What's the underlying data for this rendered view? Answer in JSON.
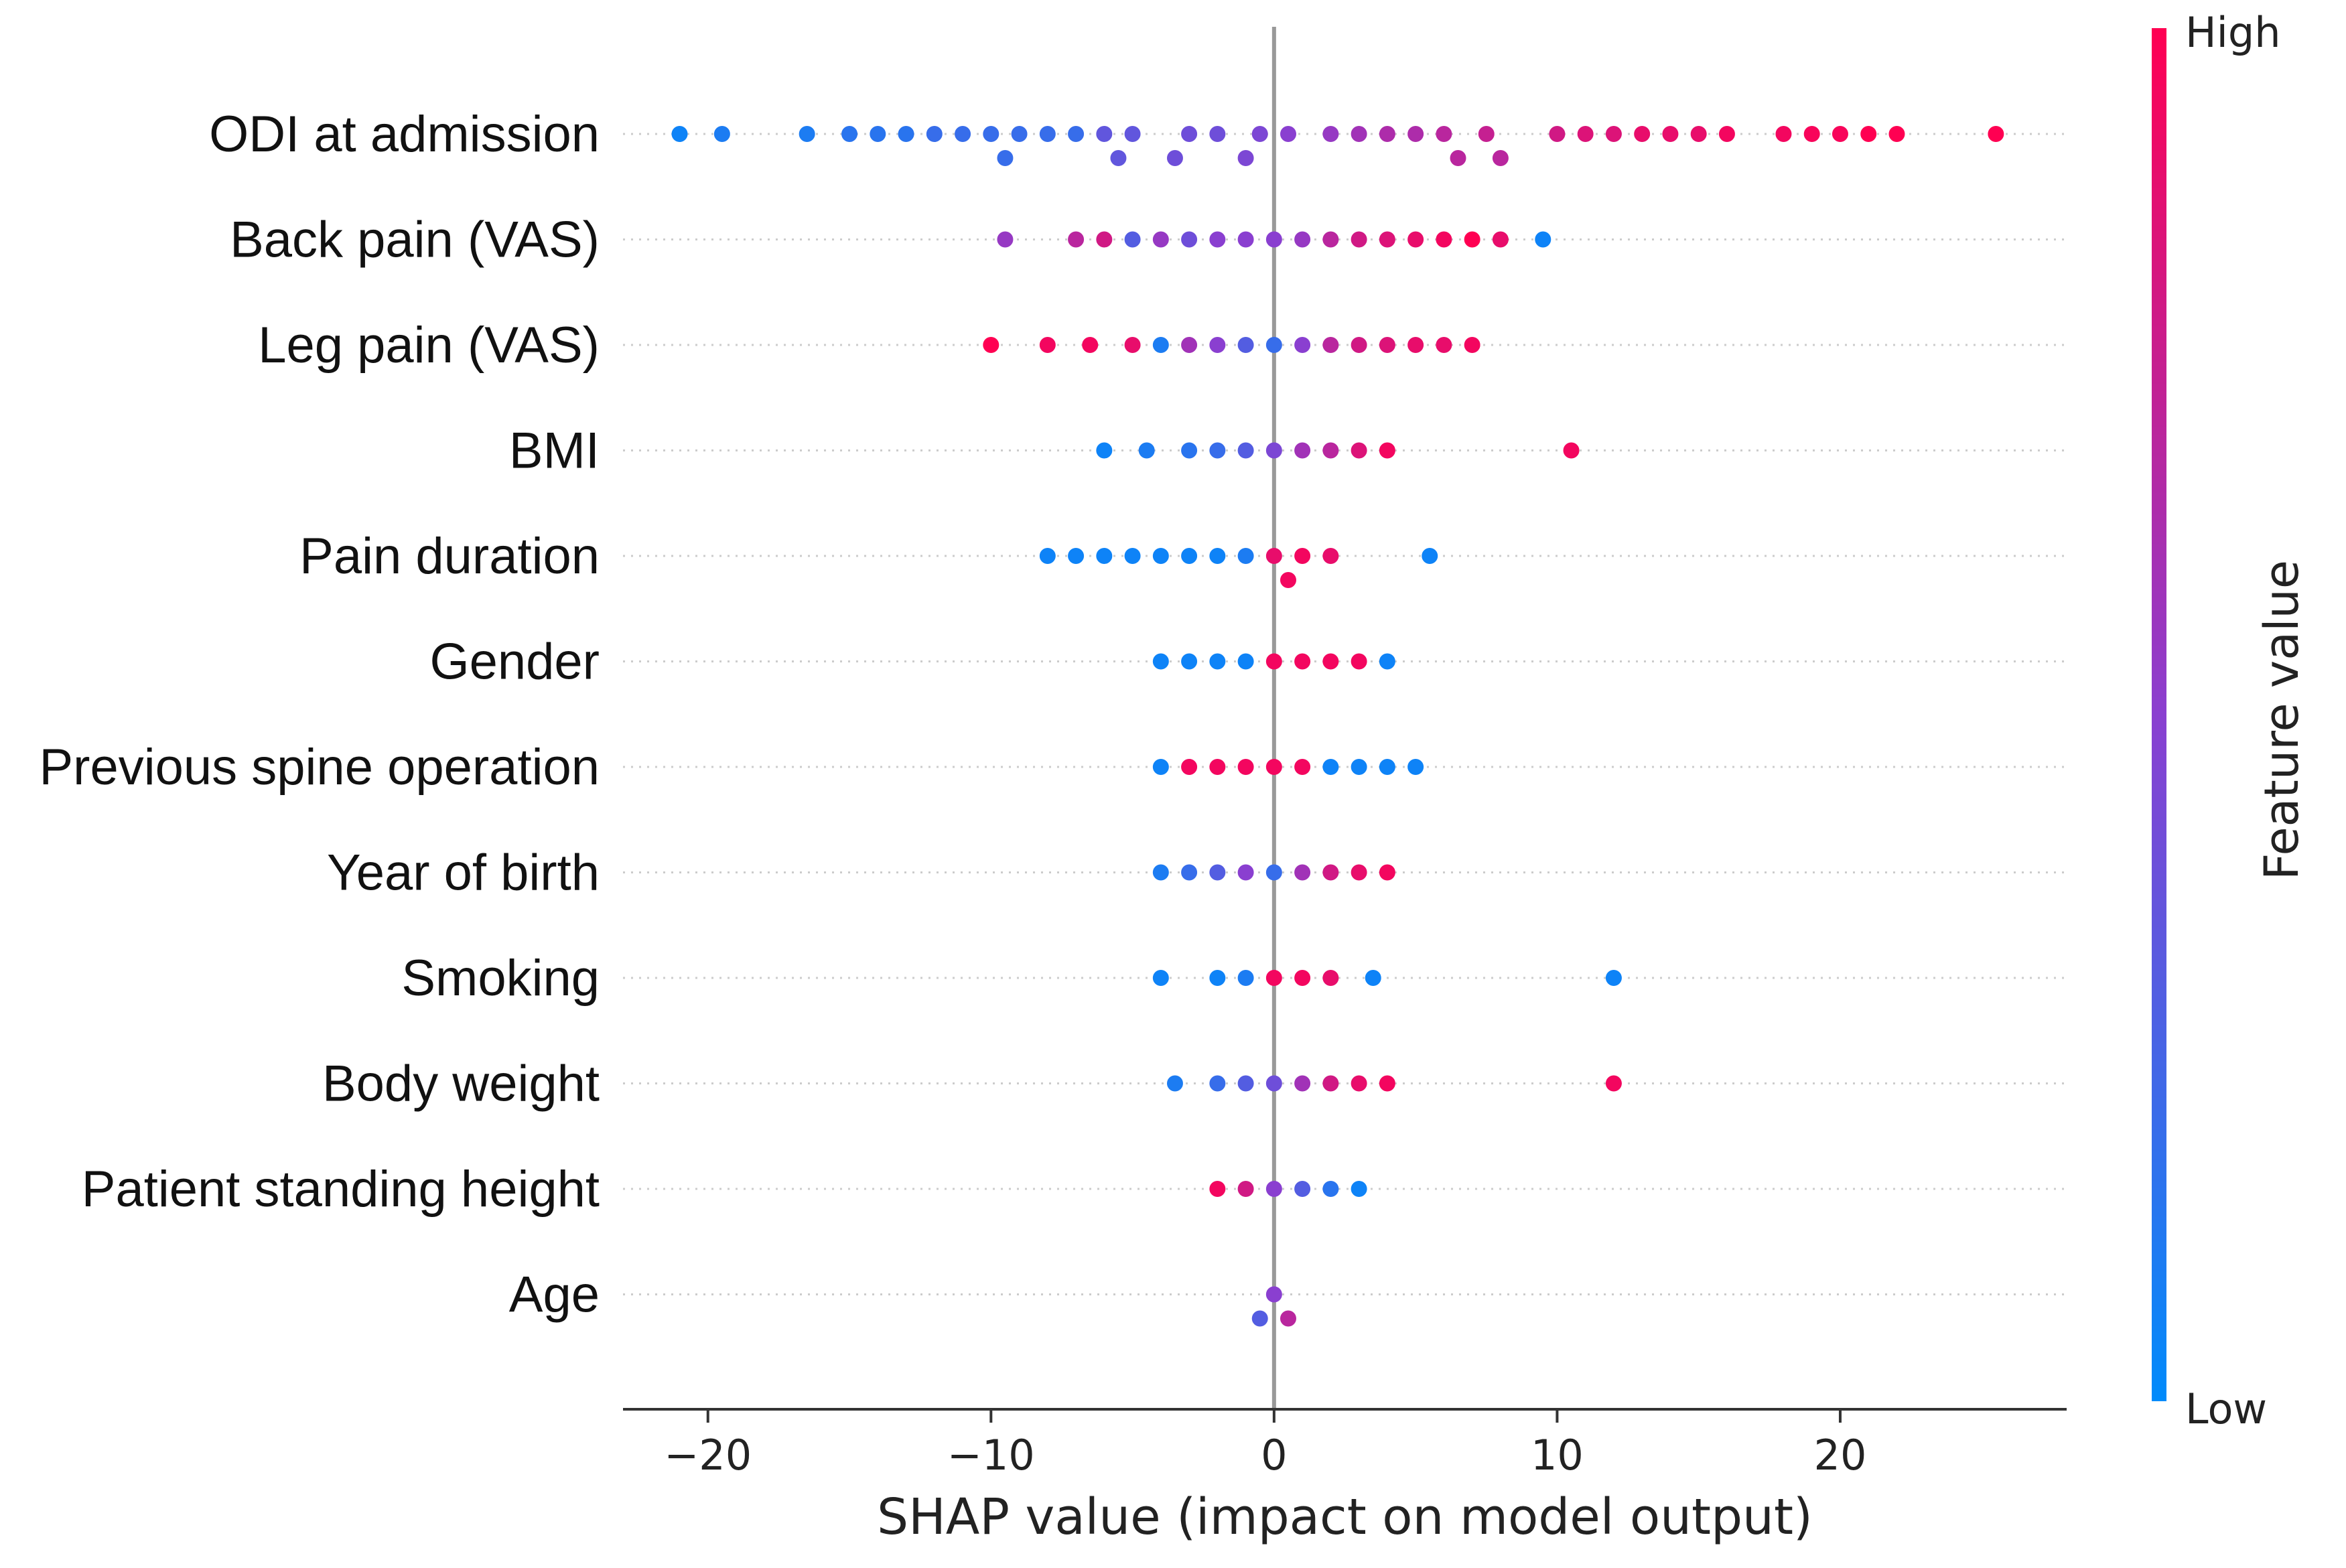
{
  "chart_data": {
    "type": "scatter",
    "subtype": "shap-beeswarm",
    "title": "",
    "xlabel": "SHAP value (impact on model output)",
    "ylabel": "",
    "xlim": [
      -23,
      28
    ],
    "xticks": [
      -20,
      -10,
      0,
      10,
      20
    ],
    "xtick_labels": [
      "−20",
      "−10",
      "0",
      "10",
      "20"
    ],
    "colorbar": {
      "title": "Feature value",
      "high_label": "High",
      "low_label": "Low",
      "low_color": "#008bfb",
      "high_color": "#ff0052"
    },
    "features": [
      {
        "name": "ODI at admission",
        "points": [
          [
            -21,
            0.05
          ],
          [
            -19.5,
            0.1
          ],
          [
            -16.5,
            0.1
          ],
          [
            -15,
            0.15
          ],
          [
            -14,
            0.15
          ],
          [
            -13,
            0.15
          ],
          [
            -12,
            0.2
          ],
          [
            -11,
            0.2
          ],
          [
            -10,
            0.2
          ],
          [
            -9.5,
            0.2
          ],
          [
            -9,
            0.2
          ],
          [
            -8,
            0.2
          ],
          [
            -7,
            0.2
          ],
          [
            -6,
            0.35
          ],
          [
            -5.5,
            0.35
          ],
          [
            -5,
            0.35
          ],
          [
            -3.5,
            0.4
          ],
          [
            -3,
            0.4
          ],
          [
            -2,
            0.4
          ],
          [
            -1,
            0.45
          ],
          [
            -0.5,
            0.45
          ],
          [
            0.5,
            0.5
          ],
          [
            2,
            0.55
          ],
          [
            3,
            0.6
          ],
          [
            4,
            0.65
          ],
          [
            5,
            0.65
          ],
          [
            6,
            0.7
          ],
          [
            6.5,
            0.7
          ],
          [
            7.5,
            0.75
          ],
          [
            8,
            0.7
          ],
          [
            10,
            0.8
          ],
          [
            11,
            0.85
          ],
          [
            12,
            0.85
          ],
          [
            13,
            0.9
          ],
          [
            14,
            0.9
          ],
          [
            15,
            0.9
          ],
          [
            16,
            0.95
          ],
          [
            18,
            0.95
          ],
          [
            19,
            0.97
          ],
          [
            20,
            0.97
          ],
          [
            21,
            1.0
          ],
          [
            22,
            1.0
          ],
          [
            25.5,
            1.0
          ]
        ]
      },
      {
        "name": "Back pain (VAS)",
        "points": [
          [
            -9.5,
            0.55
          ],
          [
            -7,
            0.7
          ],
          [
            -6,
            0.8
          ],
          [
            -5,
            0.3
          ],
          [
            -4,
            0.55
          ],
          [
            -3,
            0.4
          ],
          [
            -2,
            0.5
          ],
          [
            -1,
            0.5
          ],
          [
            0,
            0.5
          ],
          [
            1,
            0.55
          ],
          [
            2,
            0.7
          ],
          [
            3,
            0.8
          ],
          [
            4,
            0.85
          ],
          [
            5,
            0.9
          ],
          [
            6,
            0.95
          ],
          [
            7,
            1.0
          ],
          [
            8,
            0.9
          ],
          [
            9.5,
            0.05
          ]
        ]
      },
      {
        "name": "Leg pain (VAS)",
        "points": [
          [
            -10,
            1.0
          ],
          [
            -8,
            0.95
          ],
          [
            -6.5,
            0.95
          ],
          [
            -5,
            0.9
          ],
          [
            -4,
            0.1
          ],
          [
            -3,
            0.6
          ],
          [
            -2,
            0.5
          ],
          [
            -1,
            0.3
          ],
          [
            0,
            0.2
          ],
          [
            1,
            0.5
          ],
          [
            2,
            0.7
          ],
          [
            3,
            0.8
          ],
          [
            4,
            0.85
          ],
          [
            5,
            0.9
          ],
          [
            6,
            0.9
          ],
          [
            7,
            0.95
          ]
        ]
      },
      {
        "name": "BMI",
        "points": [
          [
            -6,
            0.05
          ],
          [
            -4.5,
            0.1
          ],
          [
            -3,
            0.15
          ],
          [
            -2,
            0.2
          ],
          [
            -1,
            0.3
          ],
          [
            0,
            0.45
          ],
          [
            1,
            0.6
          ],
          [
            2,
            0.7
          ],
          [
            3,
            0.85
          ],
          [
            4,
            0.95
          ],
          [
            10.5,
            0.95
          ]
        ]
      },
      {
        "name": "Pain duration",
        "points": [
          [
            -8,
            0.05
          ],
          [
            -7,
            0.05
          ],
          [
            -6,
            0.05
          ],
          [
            -5,
            0.05
          ],
          [
            -4,
            0.05
          ],
          [
            -3,
            0.05
          ],
          [
            -2,
            0.05
          ],
          [
            -1,
            0.1
          ],
          [
            0,
            0.9
          ],
          [
            0.5,
            0.95
          ],
          [
            1,
            0.95
          ],
          [
            2,
            0.9
          ],
          [
            5.5,
            0.05
          ]
        ]
      },
      {
        "name": "Gender",
        "points": [
          [
            -4,
            0.05
          ],
          [
            -3,
            0.05
          ],
          [
            -2,
            0.05
          ],
          [
            -1,
            0.05
          ],
          [
            0,
            0.95
          ],
          [
            1,
            0.95
          ],
          [
            2,
            0.95
          ],
          [
            3,
            0.95
          ],
          [
            4,
            0.05
          ]
        ]
      },
      {
        "name": "Previous spine operation",
        "points": [
          [
            -4,
            0.05
          ],
          [
            -3,
            0.95
          ],
          [
            -2,
            0.95
          ],
          [
            -1,
            0.95
          ],
          [
            0,
            0.95
          ],
          [
            1,
            0.95
          ],
          [
            2,
            0.05
          ],
          [
            3,
            0.05
          ],
          [
            4,
            0.05
          ],
          [
            5,
            0.05
          ]
        ]
      },
      {
        "name": "Year of birth",
        "points": [
          [
            -4,
            0.1
          ],
          [
            -3,
            0.2
          ],
          [
            -2,
            0.3
          ],
          [
            -1,
            0.5
          ],
          [
            0,
            0.2
          ],
          [
            1,
            0.6
          ],
          [
            2,
            0.8
          ],
          [
            3,
            0.9
          ],
          [
            4,
            0.95
          ]
        ]
      },
      {
        "name": "Smoking",
        "points": [
          [
            -4,
            0.05
          ],
          [
            -2,
            0.05
          ],
          [
            -1,
            0.1
          ],
          [
            0,
            0.95
          ],
          [
            1,
            0.95
          ],
          [
            2,
            0.9
          ],
          [
            3.5,
            0.05
          ],
          [
            12,
            0.05
          ]
        ]
      },
      {
        "name": "Body weight",
        "points": [
          [
            -3.5,
            0.1
          ],
          [
            -2,
            0.2
          ],
          [
            -1,
            0.3
          ],
          [
            0,
            0.4
          ],
          [
            1,
            0.6
          ],
          [
            2,
            0.8
          ],
          [
            3,
            0.9
          ],
          [
            4,
            0.95
          ],
          [
            12,
            0.95
          ]
        ]
      },
      {
        "name": "Patient standing height",
        "points": [
          [
            -2,
            0.95
          ],
          [
            -1,
            0.8
          ],
          [
            0,
            0.5
          ],
          [
            1,
            0.3
          ],
          [
            2,
            0.15
          ],
          [
            3,
            0.05
          ]
        ]
      },
      {
        "name": "Age",
        "points": [
          [
            -0.5,
            0.3
          ],
          [
            0,
            0.5
          ],
          [
            0.5,
            0.7
          ]
        ]
      }
    ]
  }
}
